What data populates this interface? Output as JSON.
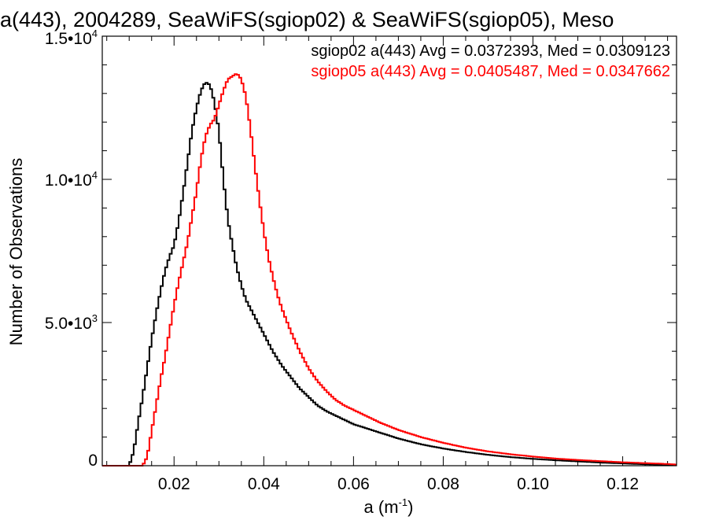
{
  "chart_data": {
    "type": "line",
    "title": "a(443), 2004289, SeaWiFS(sgiop02) & SeaWiFS(sgiop05), Meso",
    "xlabel": "a (m",
    "xlabel_sup": "-1",
    "xlabel_close": ")",
    "ylabel": "Number of Observations",
    "xlim": [
      0.004,
      0.132
    ],
    "ylim": [
      0,
      15000
    ],
    "x_ticks": [
      {
        "value": 0.02,
        "label": "0.02"
      },
      {
        "value": 0.04,
        "label": "0.04"
      },
      {
        "value": 0.06,
        "label": "0.06"
      },
      {
        "value": 0.08,
        "label": "0.08"
      },
      {
        "value": 0.1,
        "label": "0.10"
      },
      {
        "value": 0.12,
        "label": "0.12"
      }
    ],
    "y_ticks": [
      {
        "value": 0,
        "label": "0",
        "exp": ""
      },
      {
        "value": 5000,
        "label": "5.0•10",
        "exp": "3"
      },
      {
        "value": 10000,
        "label": "1.0•10",
        "exp": "4"
      },
      {
        "value": 15000,
        "label": "1.5•10",
        "exp": "4"
      }
    ],
    "series": [
      {
        "name": "sgiop02",
        "color": "#000000",
        "annotation": "sgiop02 a(443) Avg = 0.0372393, Med = 0.0309123",
        "x": [
          0.004,
          0.009,
          0.01,
          0.011,
          0.012,
          0.013,
          0.014,
          0.015,
          0.016,
          0.017,
          0.018,
          0.019,
          0.02,
          0.021,
          0.022,
          0.023,
          0.024,
          0.025,
          0.026,
          0.027,
          0.028,
          0.029,
          0.03,
          0.031,
          0.032,
          0.033,
          0.034,
          0.035,
          0.036,
          0.037,
          0.038,
          0.039,
          0.04,
          0.042,
          0.044,
          0.046,
          0.048,
          0.05,
          0.052,
          0.054,
          0.056,
          0.058,
          0.06,
          0.063,
          0.066,
          0.07,
          0.075,
          0.08,
          0.085,
          0.09,
          0.095,
          0.1,
          0.105,
          0.11,
          0.115,
          0.12,
          0.125,
          0.13,
          0.132
        ],
        "y": [
          0,
          0,
          0,
          500,
          1500,
          2400,
          3400,
          4400,
          5300,
          6100,
          6800,
          7300,
          7700,
          8500,
          9500,
          10600,
          11700,
          12500,
          13100,
          13400,
          13300,
          12700,
          11700,
          10000,
          8600,
          7700,
          6900,
          6300,
          5800,
          5500,
          5200,
          4900,
          4600,
          4000,
          3500,
          3100,
          2700,
          2400,
          2100,
          1900,
          1750,
          1600,
          1450,
          1300,
          1150,
          950,
          750,
          600,
          480,
          380,
          300,
          240,
          190,
          150,
          110,
          80,
          50,
          30,
          20
        ]
      },
      {
        "name": "sgiop05",
        "color": "#ff0000",
        "annotation": "sgiop05 a(443) Avg = 0.0405487, Med = 0.0347662",
        "x": [
          0.004,
          0.013,
          0.014,
          0.015,
          0.016,
          0.017,
          0.018,
          0.019,
          0.02,
          0.021,
          0.022,
          0.023,
          0.024,
          0.025,
          0.026,
          0.027,
          0.028,
          0.029,
          0.03,
          0.031,
          0.032,
          0.033,
          0.034,
          0.035,
          0.036,
          0.037,
          0.038,
          0.039,
          0.04,
          0.041,
          0.042,
          0.043,
          0.044,
          0.046,
          0.048,
          0.05,
          0.052,
          0.054,
          0.056,
          0.058,
          0.06,
          0.062,
          0.064,
          0.066,
          0.07,
          0.075,
          0.08,
          0.085,
          0.09,
          0.095,
          0.1,
          0.105,
          0.11,
          0.115,
          0.12,
          0.125,
          0.13,
          0.132
        ],
        "y": [
          0,
          0,
          300,
          1200,
          2100,
          3000,
          3800,
          4700,
          5600,
          6400,
          7100,
          7800,
          8700,
          9600,
          10700,
          11500,
          11900,
          12100,
          12600,
          13100,
          13500,
          13600,
          13700,
          13500,
          12900,
          11800,
          10500,
          9300,
          8200,
          7300,
          6600,
          6000,
          5500,
          4700,
          4000,
          3400,
          2950,
          2600,
          2300,
          2100,
          1950,
          1800,
          1650,
          1500,
          1250,
          1000,
          800,
          630,
          500,
          400,
          320,
          250,
          200,
          160,
          120,
          90,
          60,
          40
        ]
      }
    ]
  }
}
